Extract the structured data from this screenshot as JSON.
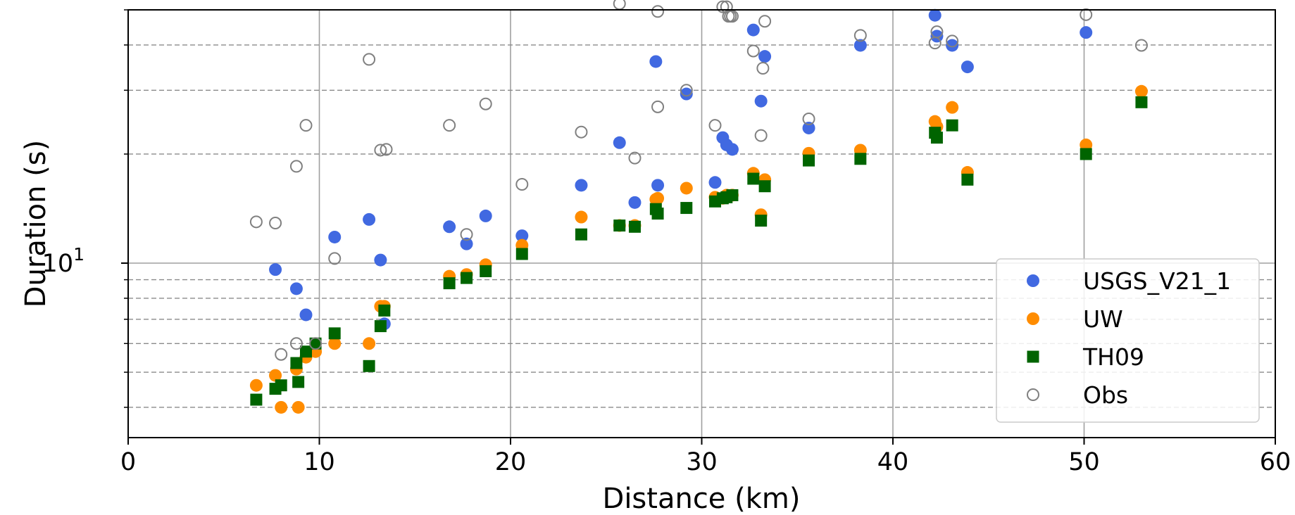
{
  "chart_data": {
    "type": "scatter",
    "title": "",
    "xlabel": "Distance (km)",
    "ylabel": "Duration (s)",
    "xlim": [
      0,
      60
    ],
    "ylim": [
      3.3,
      50
    ],
    "yscale": "log",
    "xticks": [
      "0",
      "10",
      "20",
      "30",
      "40",
      "50",
      "60"
    ],
    "yticks_major": [
      {
        "value": 10,
        "base": "10",
        "exp": "1"
      }
    ],
    "yticks_minor": [
      4,
      5,
      6,
      7,
      8,
      9,
      20,
      30,
      40,
      50
    ],
    "grid": true,
    "legend_position": "lower-right",
    "series": [
      {
        "name": "USGS_V21_1",
        "marker": "circle",
        "color": "#4169e1",
        "x": [
          7.7,
          8.8,
          9.3,
          10.8,
          12.6,
          13.2,
          13.4,
          16.8,
          17.7,
          18.7,
          20.6,
          23.7,
          25.7,
          26.5,
          27.6,
          27.7,
          29.2,
          30.7,
          31.1,
          31.3,
          31.6,
          32.7,
          33.1,
          33.3,
          35.6,
          38.3,
          42.2,
          42.3,
          43.1,
          43.9,
          50.1
        ],
        "y": [
          9.6,
          8.5,
          7.2,
          11.8,
          13.2,
          10.2,
          6.8,
          12.6,
          11.3,
          13.5,
          11.9,
          16.4,
          21.5,
          14.7,
          36.0,
          16.4,
          29.3,
          16.7,
          22.2,
          21.2,
          20.6,
          44.0,
          28.0,
          37.2,
          23.6,
          39.9,
          48.3,
          42.3,
          39.9,
          34.8,
          43.3
        ]
      },
      {
        "name": "UW",
        "marker": "circle",
        "color": "#ff8c00",
        "x": [
          6.7,
          7.7,
          8.0,
          8.8,
          8.9,
          9.3,
          9.8,
          10.8,
          12.6,
          13.2,
          13.4,
          16.8,
          17.7,
          18.7,
          20.6,
          23.7,
          25.7,
          26.5,
          27.6,
          27.7,
          29.2,
          30.7,
          31.1,
          31.3,
          31.6,
          32.7,
          33.1,
          33.3,
          35.6,
          38.3,
          42.2,
          42.3,
          43.1,
          43.9,
          50.1,
          53.0
        ],
        "y": [
          4.6,
          4.9,
          4.0,
          5.1,
          4.0,
          5.5,
          5.7,
          6.0,
          6.0,
          7.6,
          7.6,
          9.2,
          9.3,
          9.9,
          11.2,
          13.4,
          12.7,
          12.7,
          15.0,
          15.1,
          16.1,
          15.2,
          15.1,
          15.4,
          15.4,
          17.7,
          13.6,
          17.0,
          20.1,
          20.5,
          24.6,
          23.8,
          26.9,
          17.8,
          21.2,
          29.8
        ]
      },
      {
        "name": "TH09",
        "marker": "square",
        "color": "#006400",
        "x": [
          6.7,
          7.7,
          8.0,
          8.8,
          8.9,
          9.3,
          9.8,
          10.8,
          12.6,
          13.2,
          13.4,
          16.8,
          17.7,
          18.7,
          20.6,
          23.7,
          25.7,
          26.5,
          27.6,
          27.7,
          29.2,
          30.7,
          31.1,
          31.3,
          31.6,
          32.7,
          33.1,
          33.3,
          35.6,
          38.3,
          42.2,
          42.3,
          43.1,
          43.9,
          50.1,
          53.0
        ],
        "y": [
          4.2,
          4.5,
          4.6,
          5.3,
          4.7,
          5.7,
          6.0,
          6.4,
          5.2,
          6.7,
          7.4,
          8.8,
          9.1,
          9.5,
          10.6,
          12.0,
          12.7,
          12.6,
          14.1,
          13.7,
          14.2,
          14.8,
          15.1,
          15.2,
          15.4,
          17.1,
          13.1,
          16.3,
          19.2,
          19.4,
          22.9,
          22.2,
          24.0,
          17.0,
          20.0,
          27.8
        ]
      },
      {
        "name": "Obs",
        "marker": "open-circle",
        "color": "#808080",
        "x": [
          6.7,
          7.7,
          8.0,
          8.8,
          8.8,
          9.3,
          9.8,
          10.8,
          12.6,
          13.2,
          13.5,
          16.8,
          17.7,
          18.7,
          20.6,
          23.7,
          25.7,
          26.5,
          27.7,
          27.7,
          29.2,
          30.7,
          31.1,
          31.3,
          31.4,
          31.5,
          31.6,
          32.7,
          33.1,
          33.2,
          33.3,
          35.6,
          38.3,
          42.2,
          42.3,
          43.1,
          50.1,
          53.0
        ],
        "y": [
          13.0,
          12.9,
          5.6,
          18.5,
          6.0,
          24.0,
          6.0,
          10.3,
          36.5,
          20.5,
          20.6,
          24.0,
          12.0,
          27.5,
          16.5,
          23.0,
          52.0,
          19.5,
          49.5,
          27.0,
          30.0,
          24.0,
          51.0,
          51.0,
          48.0,
          48.0,
          48.0,
          38.5,
          22.5,
          34.5,
          46.5,
          25.0,
          42.5,
          40.5,
          43.5,
          41.0,
          48.5,
          39.9
        ]
      }
    ]
  }
}
